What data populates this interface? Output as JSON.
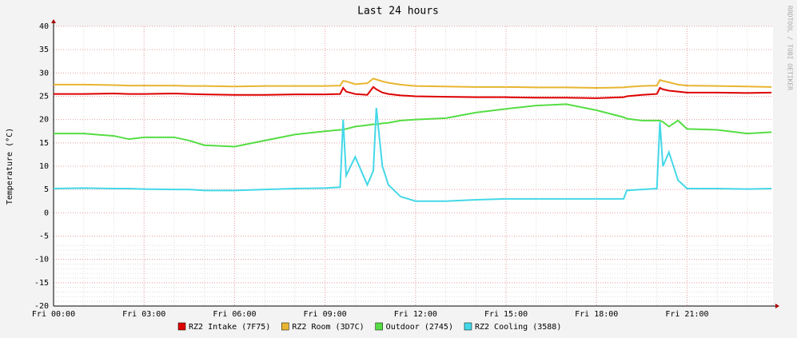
{
  "chart_data": {
    "type": "line",
    "title": "Last 24 hours",
    "y_label": "Temperature (°C)",
    "side_label": "RRDTOOL / TOBI OETIKER",
    "x": [
      0,
      1,
      2,
      2.5,
      3,
      4,
      4.5,
      5,
      6,
      7,
      8,
      9,
      9.5,
      9.6,
      9.7,
      10,
      10.4,
      10.6,
      10.7,
      10.9,
      11.1,
      11.5,
      12,
      13,
      14,
      15,
      16,
      17,
      18,
      18.9,
      19,
      19.5,
      20,
      20.1,
      20.2,
      20.4,
      20.7,
      21,
      22,
      23,
      23.8
    ],
    "xlim": [
      0,
      23.85
    ],
    "xticks": [
      {
        "value": 0,
        "label": "Fri 00:00"
      },
      {
        "value": 3,
        "label": "Fri 03:00"
      },
      {
        "value": 6,
        "label": "Fri 06:00"
      },
      {
        "value": 9,
        "label": "Fri 09:00"
      },
      {
        "value": 12,
        "label": "Fri 12:00"
      },
      {
        "value": 15,
        "label": "Fri 15:00"
      },
      {
        "value": 18,
        "label": "Fri 18:00"
      },
      {
        "value": 21,
        "label": "Fri 21:00"
      }
    ],
    "ylim": [
      -20,
      40
    ],
    "yticks": [
      -20,
      -15,
      -10,
      -5,
      0,
      5,
      10,
      15,
      20,
      25,
      30,
      35,
      40
    ],
    "grid": true,
    "series": [
      {
        "name": "RZ2 Intake (7F75)",
        "color": "#dd0000",
        "values": [
          25.5,
          25.5,
          25.6,
          25.5,
          25.5,
          25.6,
          25.5,
          25.4,
          25.3,
          25.3,
          25.4,
          25.4,
          25.5,
          26.8,
          26,
          25.5,
          25.3,
          27,
          26.5,
          25.8,
          25.5,
          25.2,
          25,
          24.9,
          24.8,
          24.8,
          24.7,
          24.7,
          24.6,
          24.8,
          25,
          25.3,
          25.5,
          26.8,
          26.5,
          26.2,
          26,
          25.8,
          25.8,
          25.7,
          25.8
        ]
      },
      {
        "name": "RZ2 Room (3D7C)",
        "color": "#e8b530",
        "values": [
          27.5,
          27.5,
          27.4,
          27.3,
          27.3,
          27.3,
          27.2,
          27.2,
          27.1,
          27.2,
          27.2,
          27.2,
          27.3,
          28.3,
          28.2,
          27.6,
          27.8,
          28.8,
          28.6,
          28.2,
          27.9,
          27.5,
          27.2,
          27.1,
          27,
          27,
          26.9,
          26.9,
          26.8,
          26.9,
          27,
          27.2,
          27.3,
          28.5,
          28.3,
          28,
          27.5,
          27.3,
          27.2,
          27.1,
          27
        ]
      },
      {
        "name": "Outdoor (2745)",
        "color": "#55dd44",
        "values": [
          17,
          17,
          16.5,
          15.8,
          16.2,
          16.2,
          15.5,
          14.5,
          14.2,
          15.5,
          16.8,
          17.5,
          17.8,
          17.8,
          18,
          18.5,
          18.8,
          19,
          19,
          19.2,
          19.3,
          19.8,
          20,
          20.3,
          21.5,
          22.3,
          23,
          23.3,
          22,
          20.5,
          20.2,
          19.8,
          19.8,
          19.8,
          19.5,
          18.5,
          19.8,
          18,
          17.8,
          17,
          17.3
        ]
      },
      {
        "name": "RZ2 Cooling (3588)",
        "color": "#44d8e8",
        "values": [
          5.2,
          5.3,
          5.2,
          5.2,
          5.1,
          5,
          5,
          4.8,
          4.8,
          5,
          5.2,
          5.3,
          5.5,
          20,
          8,
          12,
          6,
          9,
          22.5,
          10,
          6,
          3.5,
          2.5,
          2.5,
          2.8,
          3,
          3,
          3,
          3,
          3,
          4.8,
          5,
          5.2,
          19.5,
          10,
          13,
          7,
          5.2,
          5.2,
          5.1,
          5.2
        ]
      }
    ]
  }
}
